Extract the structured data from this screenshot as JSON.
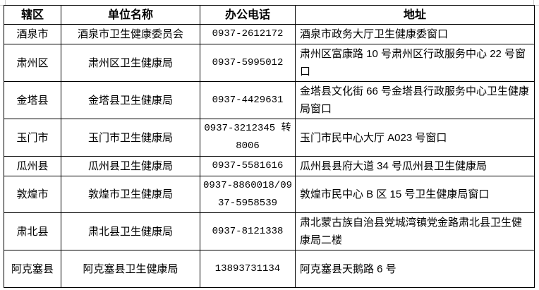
{
  "table": {
    "headers": [
      "辖区",
      "单位名称",
      "办公电话",
      "地址"
    ],
    "rows": [
      {
        "district": "酒泉市",
        "unit": "酒泉市卫生健康委员会",
        "phone": "0937-2612172",
        "address": "酒泉市政务大厅卫生健康委窗口"
      },
      {
        "district": "肃州区",
        "unit": "肃州区卫生健康局",
        "phone": "0937-5995012",
        "address": "肃州区富康路 10 号肃州区行政服务中心 22 号窗口"
      },
      {
        "district": "金塔县",
        "unit": "金塔县卫生健康局",
        "phone": "0937-4429631",
        "address": "金塔县文化街 66 号金塔县行政服务中心卫生健康局窗口"
      },
      {
        "district": "玉门市",
        "unit": "玉门市卫生健康局",
        "phone": "0937-3212345 转 8006",
        "address": "玉门市民中心大厅 A023 号窗口"
      },
      {
        "district": "瓜州县",
        "unit": "瓜州县卫生健康局",
        "phone": "0937-5581616",
        "address": "瓜州县县府大道 34 号瓜州县卫生健康局"
      },
      {
        "district": "敦煌市",
        "unit": "敦煌市卫生健康局",
        "phone": "0937-8860018/0937-5958539",
        "address": "敦煌市民中心 B 区 15 号卫生健康局窗口"
      },
      {
        "district": "肃北县",
        "unit": "肃北县卫生健康局",
        "phone": "0937-8121338",
        "address": "肃北蒙古族自治县党城湾镇党金路肃北县卫生健康局二楼"
      },
      {
        "district": "阿克塞县",
        "unit": "阿克塞县卫生健康局",
        "phone": "13893731134",
        "address": "阿克塞县天鹅路 6 号"
      }
    ]
  }
}
